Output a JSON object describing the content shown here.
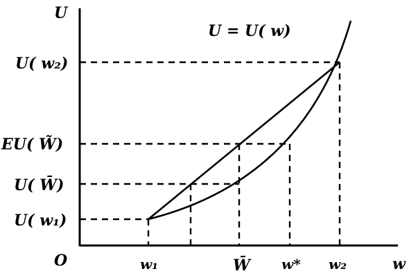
{
  "diagram": {
    "y_axis_label": "U",
    "x_axis_label": "w",
    "origin_label": "O",
    "function_label": "U = U( w)",
    "y_ticks": {
      "u_w2": "U( w₂)",
      "eu_w": "EU( W̃)",
      "u_wbar": "U( W̄)",
      "u_w1": "U( w₁)"
    },
    "x_ticks": {
      "w1": "w₁",
      "wbar": "W̄",
      "wstar": "w*",
      "w2": "w₂"
    },
    "line_color": "#000000",
    "background": "#ffffff"
  }
}
